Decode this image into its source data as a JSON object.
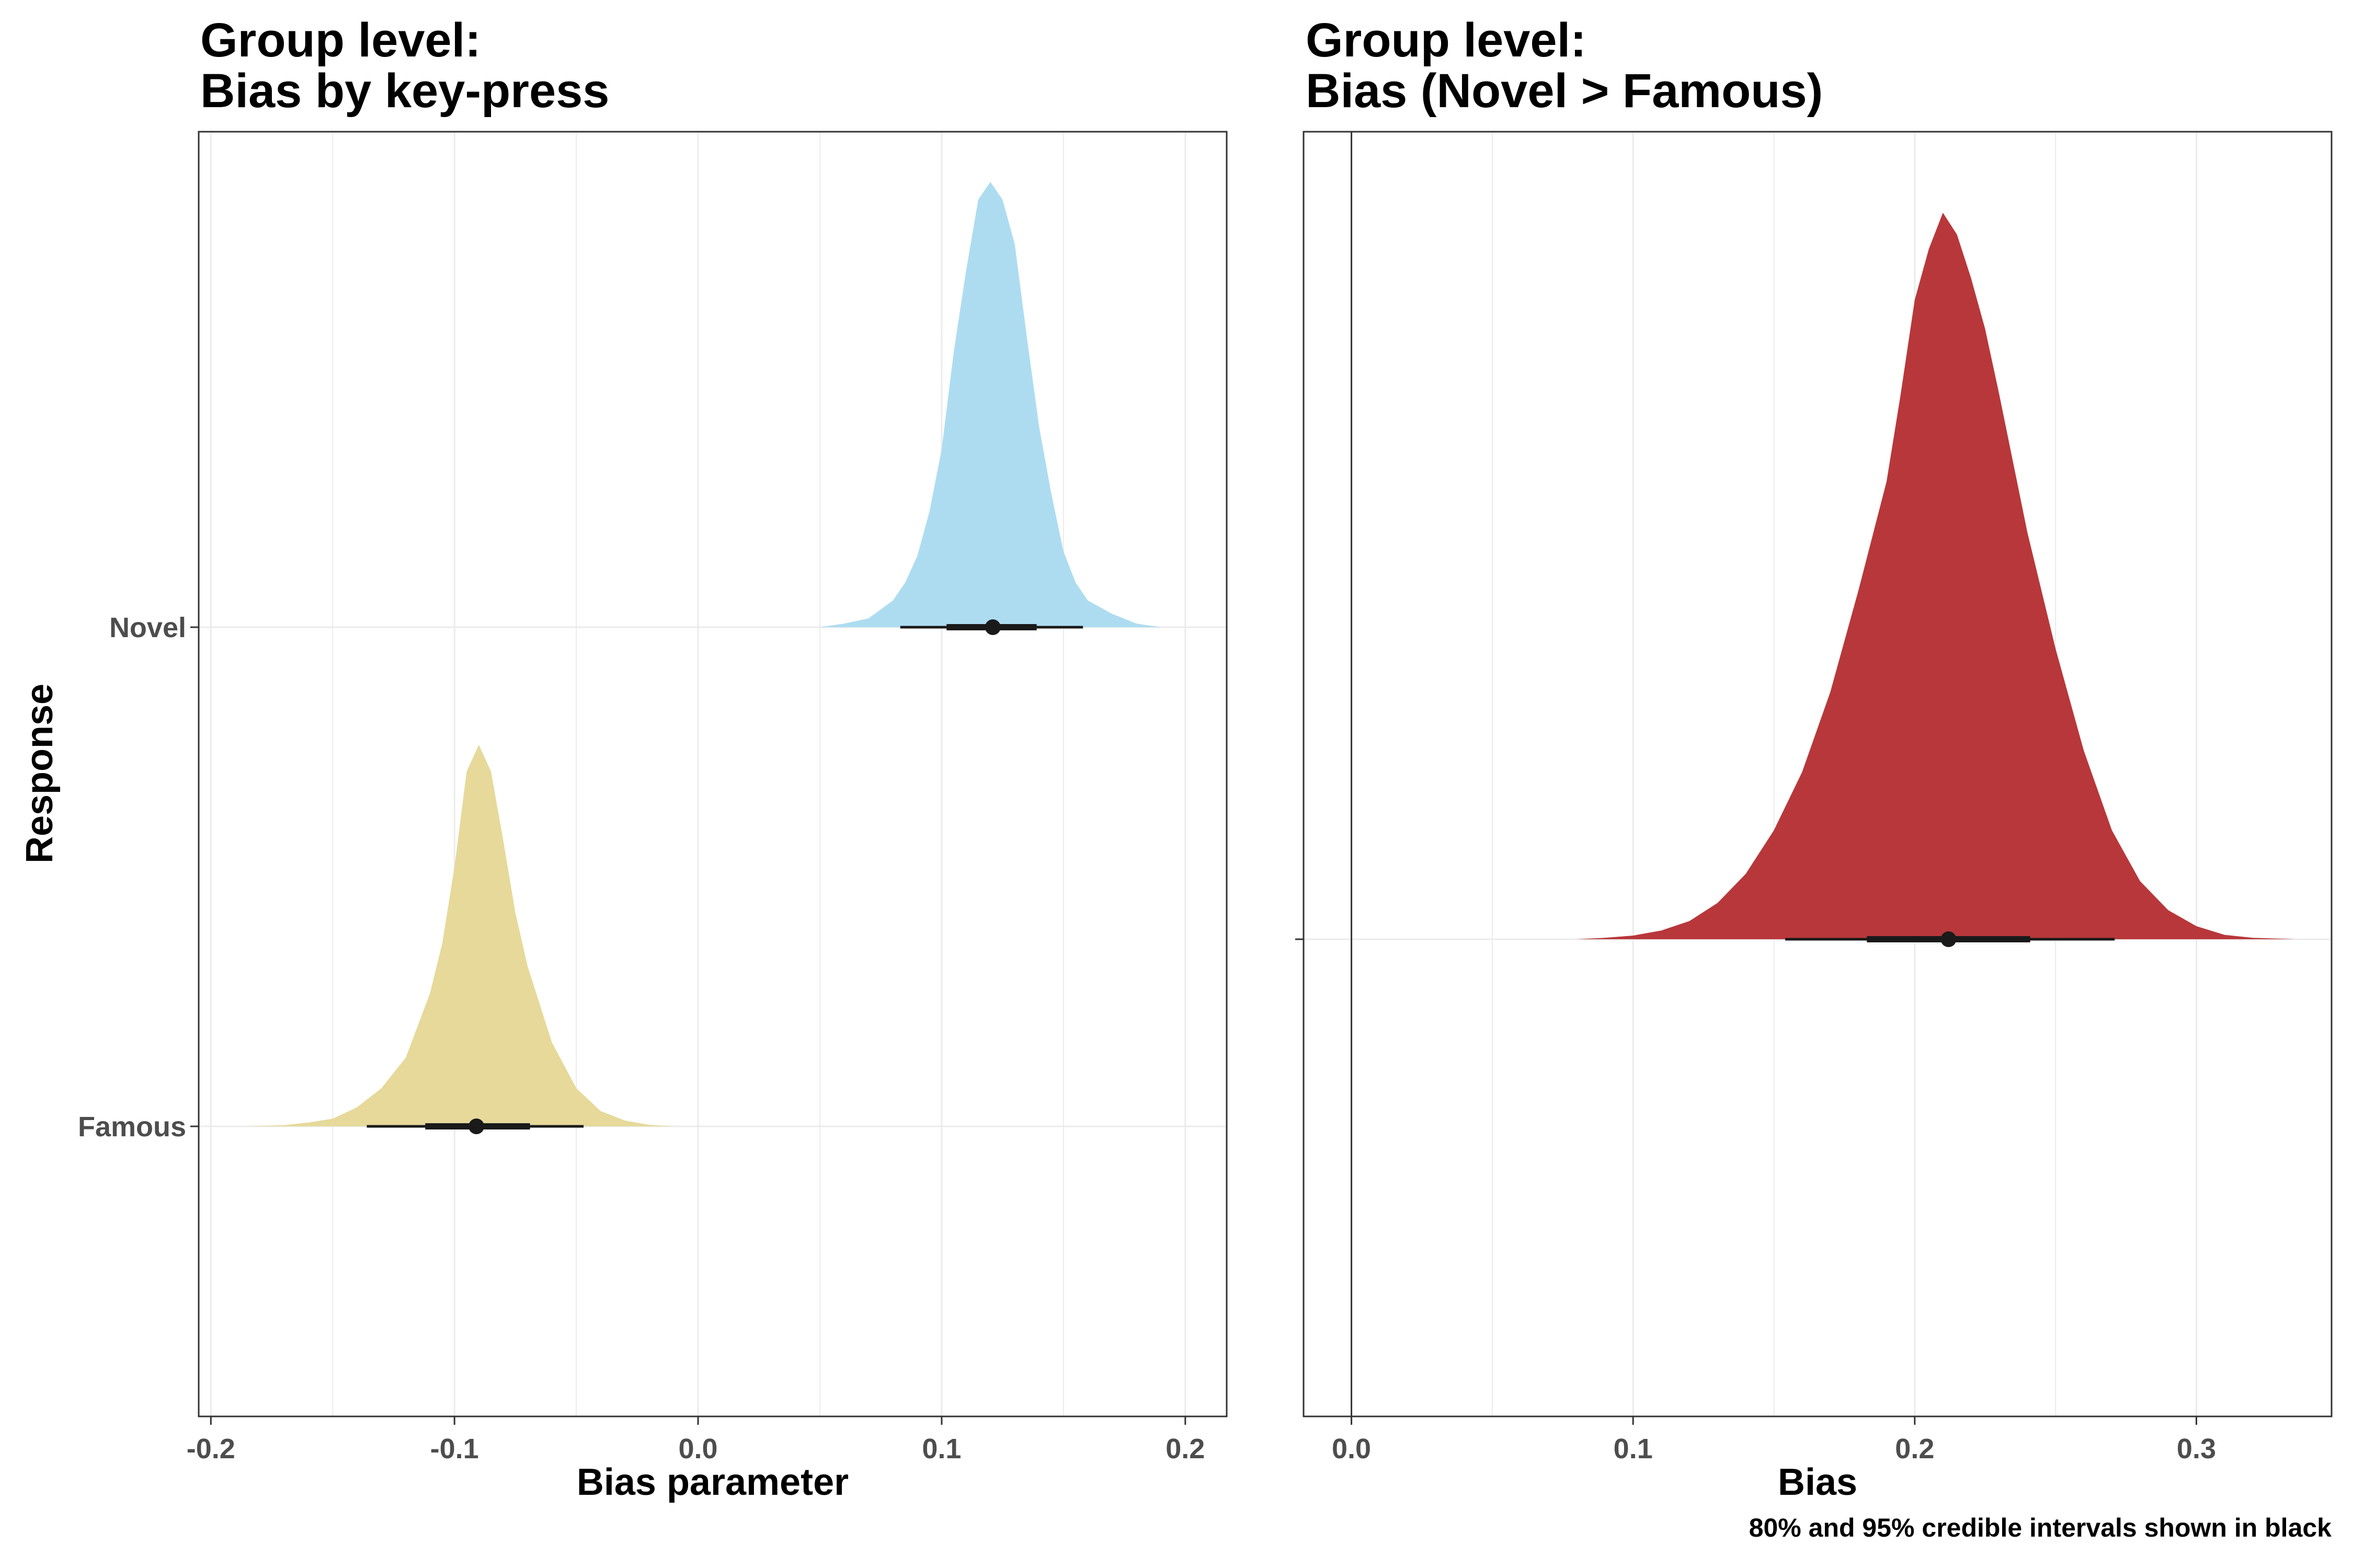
{
  "chart_data": [
    {
      "type": "area",
      "title_line1": "Group level:",
      "title_line2": "Bias by key-press",
      "xlabel": "Bias parameter",
      "ylabel": "Response",
      "xlim": [
        -0.205,
        0.217
      ],
      "x_ticks": [
        -0.2,
        -0.1,
        0.0,
        0.1,
        0.2
      ],
      "x_tick_labels": [
        "-0.2",
        "-0.1",
        "0.0",
        "0.1",
        "0.2"
      ],
      "categories": [
        "Famous",
        "Novel"
      ],
      "grid": true,
      "series": [
        {
          "name": "Famous",
          "color": "#e6d99a",
          "points": [
            [
              -0.185,
              0.0
            ],
            [
              -0.17,
              0.003
            ],
            [
              -0.16,
              0.01
            ],
            [
              -0.15,
              0.02
            ],
            [
              -0.14,
              0.05
            ],
            [
              -0.13,
              0.1
            ],
            [
              -0.12,
              0.18
            ],
            [
              -0.11,
              0.35
            ],
            [
              -0.105,
              0.48
            ],
            [
              -0.1,
              0.68
            ],
            [
              -0.095,
              0.93
            ],
            [
              -0.09,
              1.0
            ],
            [
              -0.085,
              0.93
            ],
            [
              -0.08,
              0.75
            ],
            [
              -0.075,
              0.56
            ],
            [
              -0.07,
              0.42
            ],
            [
              -0.06,
              0.22
            ],
            [
              -0.05,
              0.1
            ],
            [
              -0.04,
              0.04
            ],
            [
              -0.03,
              0.015
            ],
            [
              -0.02,
              0.004
            ],
            [
              -0.01,
              0.0
            ]
          ],
          "median": -0.091,
          "ci80": [
            -0.112,
            -0.069
          ],
          "ci95": [
            -0.136,
            -0.047
          ]
        },
        {
          "name": "Novel",
          "color": "#addcf1",
          "points": [
            [
              0.05,
              0.0
            ],
            [
              0.06,
              0.008
            ],
            [
              0.07,
              0.02
            ],
            [
              0.08,
              0.06
            ],
            [
              0.085,
              0.1
            ],
            [
              0.09,
              0.16
            ],
            [
              0.095,
              0.26
            ],
            [
              0.1,
              0.4
            ],
            [
              0.105,
              0.62
            ],
            [
              0.11,
              0.8
            ],
            [
              0.115,
              0.96
            ],
            [
              0.12,
              1.0
            ],
            [
              0.125,
              0.96
            ],
            [
              0.13,
              0.86
            ],
            [
              0.135,
              0.65
            ],
            [
              0.14,
              0.45
            ],
            [
              0.145,
              0.3
            ],
            [
              0.15,
              0.17
            ],
            [
              0.155,
              0.1
            ],
            [
              0.16,
              0.06
            ],
            [
              0.17,
              0.03
            ],
            [
              0.18,
              0.008
            ],
            [
              0.19,
              0.0
            ]
          ],
          "median": 0.121,
          "ci80": [
            0.102,
            0.139
          ],
          "ci95": [
            0.083,
            0.158
          ]
        }
      ]
    },
    {
      "type": "area",
      "title_line1": "Group level:",
      "title_line2": "Bias (Novel > Famous)",
      "xlabel": "Bias",
      "xlim": [
        -0.017,
        0.348
      ],
      "x_ticks": [
        0.0,
        0.1,
        0.2,
        0.3
      ],
      "x_tick_labels": [
        "0.0",
        "0.1",
        "0.2",
        "0.3"
      ],
      "grid": true,
      "reference_line": 0.0,
      "series": [
        {
          "name": "Bias",
          "color": "#b8373a",
          "points": [
            [
              0.08,
              0.0
            ],
            [
              0.09,
              0.002
            ],
            [
              0.1,
              0.005
            ],
            [
              0.11,
              0.012
            ],
            [
              0.12,
              0.025
            ],
            [
              0.13,
              0.05
            ],
            [
              0.14,
              0.09
            ],
            [
              0.15,
              0.15
            ],
            [
              0.16,
              0.23
            ],
            [
              0.17,
              0.34
            ],
            [
              0.18,
              0.48
            ],
            [
              0.19,
              0.63
            ],
            [
              0.195,
              0.75
            ],
            [
              0.2,
              0.88
            ],
            [
              0.205,
              0.95
            ],
            [
              0.21,
              1.0
            ],
            [
              0.215,
              0.97
            ],
            [
              0.22,
              0.91
            ],
            [
              0.225,
              0.84
            ],
            [
              0.23,
              0.75
            ],
            [
              0.24,
              0.56
            ],
            [
              0.25,
              0.4
            ],
            [
              0.26,
              0.26
            ],
            [
              0.27,
              0.15
            ],
            [
              0.28,
              0.08
            ],
            [
              0.29,
              0.04
            ],
            [
              0.3,
              0.018
            ],
            [
              0.31,
              0.006
            ],
            [
              0.32,
              0.002
            ],
            [
              0.335,
              0.0
            ]
          ],
          "median": 0.212,
          "ci80": [
            0.183,
            0.241
          ],
          "ci95": [
            0.154,
            0.271
          ]
        }
      ]
    }
  ],
  "caption": "80% and 95% credible intervals shown in black",
  "colors": {
    "panel_border": "#333333",
    "grid": "#ebebeb",
    "interval": "#1a1a1a",
    "reference_line": "#333333"
  }
}
